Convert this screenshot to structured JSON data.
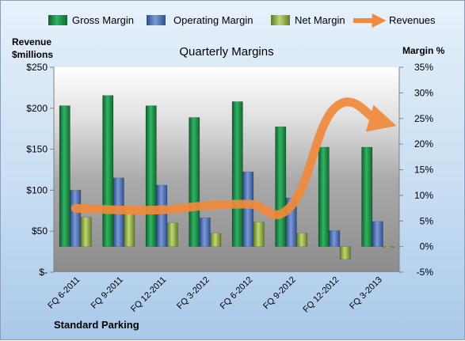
{
  "chart_data": {
    "type": "bar",
    "title": "Quarterly Margins",
    "left_axis_title": [
      "Revenue",
      "$millions"
    ],
    "right_axis_title": "Margin %",
    "footer": "Standard Parking",
    "categories": [
      "FQ 6-2011",
      "FQ 9-2011",
      "FQ 12-2011",
      "FQ 3-2012",
      "FQ 6-2012",
      "FQ 9-2012",
      "FQ 12-2012",
      "FQ 3-2013"
    ],
    "left_axis": {
      "ylim": [
        0,
        250
      ],
      "ticks": [
        0,
        50,
        100,
        150,
        200,
        250
      ],
      "tick_labels": [
        "$-",
        "$50",
        "$100",
        "$150",
        "$200",
        "$250"
      ]
    },
    "right_axis": {
      "ylim": [
        -5,
        35
      ],
      "ticks": [
        -5,
        0,
        5,
        10,
        15,
        20,
        25,
        30,
        35
      ],
      "tick_labels": [
        "-5%",
        "0%",
        "5%",
        "10%",
        "15%",
        "20%",
        "25%",
        "30%",
        "35%"
      ]
    },
    "series": [
      {
        "name": "Gross Margin",
        "axis": "right",
        "kind": "bar",
        "color": "#1e8c4a",
        "values": [
          27.5,
          29.5,
          27.5,
          25.2,
          28.3,
          23.4,
          19.4,
          19.4
        ]
      },
      {
        "name": "Operating Margin",
        "axis": "right",
        "kind": "bar",
        "color": "#4f73b8",
        "values": [
          11.0,
          13.4,
          12.0,
          5.6,
          14.6,
          9.5,
          3.1,
          4.9
        ]
      },
      {
        "name": "Net Margin",
        "axis": "right",
        "kind": "bar",
        "color": "#98b84a",
        "values": [
          5.7,
          7.3,
          4.6,
          2.6,
          4.8,
          2.6,
          -2.5,
          -0.2
        ]
      },
      {
        "name": "Revenues",
        "axis": "left",
        "kind": "line",
        "color": "#f08a3c",
        "values": [
          78,
          76,
          76,
          81,
          83,
          81,
          200,
          185
        ]
      }
    ],
    "legend_position": "top",
    "grid": false
  }
}
